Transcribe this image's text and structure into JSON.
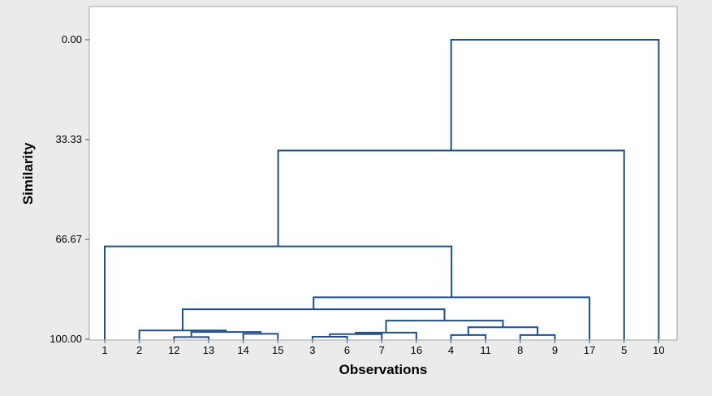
{
  "chart_data": {
    "type": "dendrogram",
    "xlabel": "Observations",
    "ylabel": "Similarity",
    "ylim": [
      0,
      100
    ],
    "y_reversed": true,
    "y_ticks": [
      0.0,
      33.33,
      66.67,
      100.0
    ],
    "y_tick_labels": [
      "0.00",
      "33.33",
      "66.67",
      "100.00"
    ],
    "leaf_order": [
      "1",
      "2",
      "12",
      "13",
      "14",
      "15",
      "3",
      "6",
      "7",
      "16",
      "4",
      "11",
      "8",
      "9",
      "17",
      "5",
      "10"
    ],
    "link_color": "#1f4e8c",
    "merges": [
      {
        "a": "12",
        "b": "13",
        "similarity": 99.3
      },
      {
        "a": "14",
        "b": "15",
        "similarity": 98.2
      },
      {
        "a": "12+13",
        "b": "14+15",
        "similarity": 97.6
      },
      {
        "a": "2",
        "b": "12+13+14+15",
        "similarity": 97.1
      },
      {
        "a": "3",
        "b": "6",
        "similarity": 99.2
      },
      {
        "a": "3+6",
        "b": "7",
        "similarity": 98.3
      },
      {
        "a": "3+6+7",
        "b": "16",
        "similarity": 97.8
      },
      {
        "a": "4",
        "b": "11",
        "similarity": 98.6
      },
      {
        "a": "8",
        "b": "9",
        "similarity": 98.6
      },
      {
        "a": "4+11",
        "b": "8+9",
        "similarity": 96.0
      },
      {
        "a": "3+6+7+16",
        "b": "4+11+8+9",
        "similarity": 93.8
      },
      {
        "a": "2-15",
        "b": "3-9",
        "similarity": 90.0
      },
      {
        "a": "2-9",
        "b": "17",
        "similarity": 86.0
      },
      {
        "a": "1",
        "b": "2-17",
        "similarity": 69.0
      },
      {
        "a": "1-17",
        "b": "5",
        "similarity": 37.0
      },
      {
        "a": "1-5",
        "b": "10",
        "similarity": 0.0
      }
    ]
  }
}
